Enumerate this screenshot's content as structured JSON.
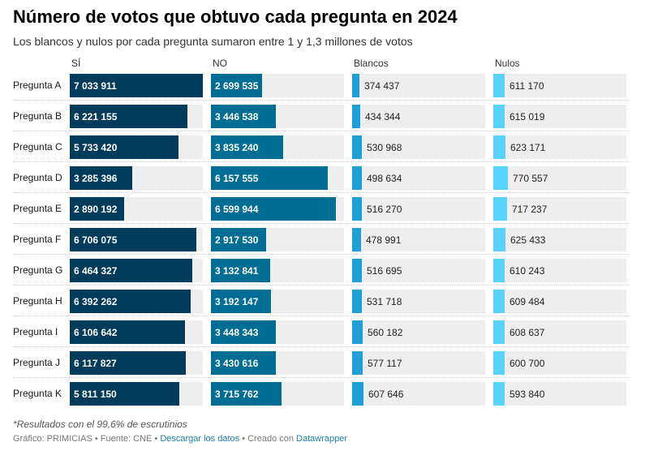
{
  "title": "Número de votos que obtuvo cada pregunta en 2024",
  "subtitle": "Los blancos y nulos por cada pregunta sumaron entre 1 y 1,3 millones de votos",
  "note": "*Resultados con el 99,6% de escrutinios",
  "footer": {
    "source_prefix": "Gráfico: PRIMICIAS • Fuente: CNE • ",
    "download_label": "Descargar los datos",
    "created_prefix": " • Creado con ",
    "tool_label": "Datawrapper"
  },
  "colors": {
    "si": "#003b5c",
    "no": "#006d95",
    "blancos": "#1e9fd8",
    "nulos": "#58d3ff",
    "track": "#eeeeee"
  },
  "chart_data": {
    "type": "bar",
    "orientation": "horizontal",
    "categories": [
      "Pregunta A",
      "Pregunta B",
      "Pregunta C",
      "Pregunta D",
      "Pregunta E",
      "Pregunta F",
      "Pregunta G",
      "Pregunta H",
      "Pregunta I",
      "Pregunta J",
      "Pregunta K"
    ],
    "series": [
      {
        "name": "SÍ",
        "values": [
          7033911,
          6221155,
          5733420,
          3285396,
          2890192,
          6706075,
          6464327,
          6392262,
          6106642,
          6117827,
          5811150
        ],
        "labels": [
          "7 033 911",
          "6 221 155",
          "5 733 420",
          "3 285 396",
          "2 890 192",
          "6 706 075",
          "6 464 327",
          "6 392 262",
          "6 106 642",
          "6 117 827",
          "5 811 150"
        ]
      },
      {
        "name": "NO",
        "values": [
          2699535,
          3446538,
          3835240,
          6157555,
          6599944,
          2917530,
          3132841,
          3192147,
          3448343,
          3430616,
          3715762
        ],
        "labels": [
          "2 699 535",
          "3 446 538",
          "3 835 240",
          "6 157 555",
          "6 599 944",
          "2 917 530",
          "3 132 841",
          "3 192 147",
          "3 448 343",
          "3 430 616",
          "3 715 762"
        ]
      },
      {
        "name": "Blancos",
        "values": [
          374437,
          434344,
          530968,
          498634,
          516270,
          478991,
          516695,
          531718,
          560182,
          577117,
          607646
        ],
        "labels": [
          "374 437",
          "434 344",
          "530 968",
          "498 634",
          "516 270",
          "478 991",
          "516 695",
          "531 718",
          "560 182",
          "577 117",
          "607 646"
        ]
      },
      {
        "name": "Nulos",
        "values": [
          611170,
          615019,
          623171,
          770557,
          717237,
          625433,
          610243,
          609484,
          608637,
          600700,
          593840
        ],
        "labels": [
          "611 170",
          "615 019",
          "623 171",
          "770 557",
          "717 237",
          "625 433",
          "610 243",
          "609 484",
          "608 637",
          "600 700",
          "593 840"
        ]
      }
    ],
    "xlim": [
      0,
      7033911
    ]
  }
}
